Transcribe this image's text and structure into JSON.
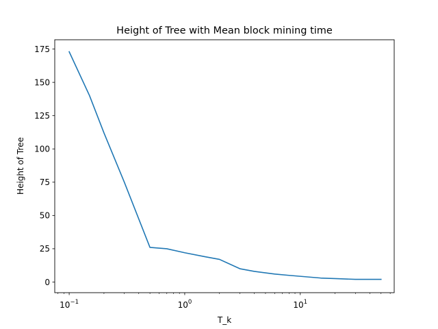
{
  "chart_data": {
    "type": "line",
    "title": "Height of Tree with Mean block mining time",
    "xlabel": "T_k",
    "ylabel": "Height of Tree",
    "xscale": "log",
    "xlim": [
      0.075,
      65
    ],
    "ylim": [
      -8,
      182
    ],
    "grid": false,
    "legend": "none",
    "series": [
      {
        "color": "#1f77b4",
        "x": [
          0.1,
          0.15,
          0.2,
          0.3,
          0.5,
          0.7,
          1,
          1.5,
          2,
          3,
          4,
          6,
          8,
          10,
          15,
          20,
          30,
          50
        ],
        "y": [
          173,
          140,
          112,
          75,
          26,
          25,
          22,
          19,
          17,
          10,
          8,
          6,
          5,
          4.3,
          3,
          2.6,
          2,
          2
        ]
      }
    ],
    "x_ticks": [
      {
        "value": 0.1,
        "base": "10",
        "exp": "−1"
      },
      {
        "value": 1,
        "base": "10",
        "exp": "0"
      },
      {
        "value": 10,
        "base": "10",
        "exp": "1"
      }
    ],
    "y_ticks": [
      {
        "value": 0,
        "label": "0"
      },
      {
        "value": 25,
        "label": "25"
      },
      {
        "value": 50,
        "label": "50"
      },
      {
        "value": 75,
        "label": "75"
      },
      {
        "value": 100,
        "label": "100"
      },
      {
        "value": 125,
        "label": "125"
      },
      {
        "value": 150,
        "label": "150"
      },
      {
        "value": 175,
        "label": "175"
      }
    ]
  }
}
